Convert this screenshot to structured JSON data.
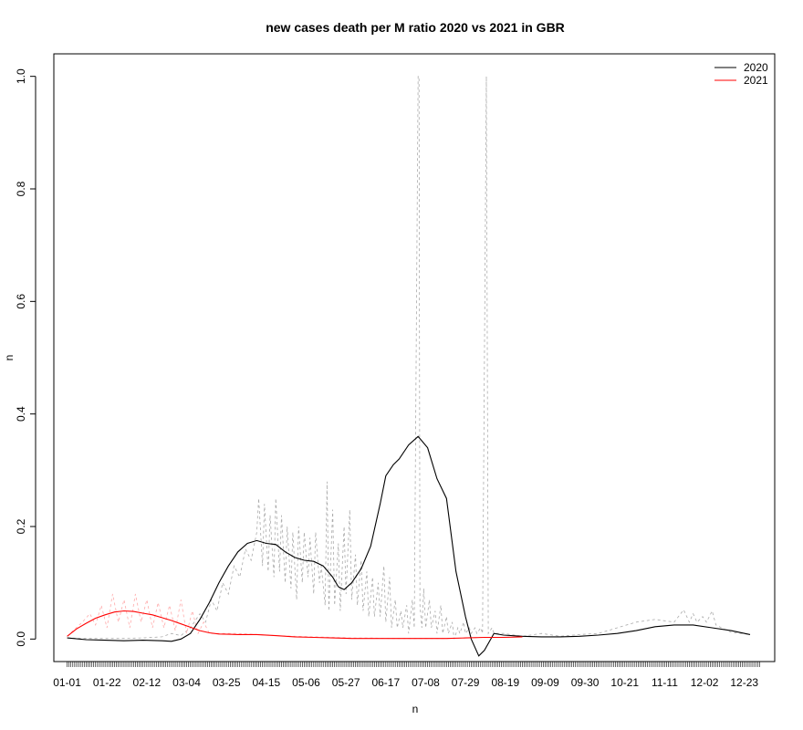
{
  "chart_data": {
    "type": "line",
    "title": "new cases death per M ratio 2020 vs 2021 in GBR",
    "xlabel": "n",
    "ylabel": "n",
    "x_tick_labels": [
      "01-01",
      "01-22",
      "02-12",
      "03-04",
      "03-25",
      "04-15",
      "05-06",
      "05-27",
      "06-17",
      "07-08",
      "07-29",
      "08-19",
      "09-09",
      "09-30",
      "10-21",
      "11-11",
      "12-02",
      "12-23"
    ],
    "x_tick_days": [
      0,
      21,
      42,
      63,
      84,
      105,
      126,
      147,
      168,
      189,
      210,
      231,
      252,
      273,
      294,
      315,
      336,
      357
    ],
    "y_ticks": [
      0.0,
      0.2,
      0.4,
      0.6,
      0.8,
      1.0
    ],
    "y_tick_labels": [
      "0.0",
      "0.2",
      "0.4",
      "0.6",
      "0.8",
      "1.0"
    ],
    "xlim": [
      -7,
      373
    ],
    "ylim": [
      -0.04,
      1.04
    ],
    "legend_position": "top-right",
    "legend": [
      {
        "label": "2020",
        "color": "#000000"
      },
      {
        "label": "2021",
        "color": "#ff0000"
      }
    ],
    "series": [
      {
        "name": "2020",
        "color": "#000000",
        "x": [
          0,
          10,
          20,
          30,
          40,
          50,
          55,
          60,
          65,
          70,
          75,
          80,
          85,
          90,
          95,
          100,
          105,
          110,
          115,
          120,
          125,
          130,
          135,
          140,
          143,
          146,
          150,
          155,
          160,
          165,
          168,
          172,
          175,
          180,
          185,
          190,
          195,
          200,
          205,
          210,
          213,
          217,
          220,
          225,
          230,
          240,
          250,
          260,
          270,
          280,
          290,
          300,
          310,
          320,
          330,
          340,
          350,
          360
        ],
        "values": [
          0.002,
          -0.001,
          -0.002,
          -0.003,
          -0.002,
          -0.003,
          -0.004,
          0.0,
          0.01,
          0.035,
          0.065,
          0.1,
          0.13,
          0.155,
          0.17,
          0.175,
          0.17,
          0.168,
          0.155,
          0.145,
          0.14,
          0.138,
          0.13,
          0.11,
          0.093,
          0.088,
          0.1,
          0.125,
          0.165,
          0.24,
          0.29,
          0.31,
          0.32,
          0.345,
          0.36,
          0.34,
          0.285,
          0.25,
          0.12,
          0.04,
          0.0,
          -0.03,
          -0.02,
          0.01,
          0.007,
          0.005,
          0.004,
          0.004,
          0.005,
          0.007,
          0.01,
          0.015,
          0.022,
          0.025,
          0.025,
          0.02,
          0.015,
          0.008
        ]
      },
      {
        "name": "2021",
        "color": "#ff0000",
        "x": [
          0,
          5,
          10,
          15,
          20,
          25,
          30,
          35,
          40,
          45,
          50,
          55,
          60,
          65,
          70,
          75,
          80,
          90,
          100,
          110,
          120,
          130,
          140,
          150,
          160,
          170,
          180,
          190,
          200,
          210,
          220,
          230,
          240
        ],
        "values": [
          0.005,
          0.018,
          0.028,
          0.037,
          0.043,
          0.048,
          0.05,
          0.049,
          0.046,
          0.043,
          0.038,
          0.033,
          0.027,
          0.021,
          0.015,
          0.011,
          0.009,
          0.008,
          0.008,
          0.006,
          0.004,
          0.003,
          0.002,
          0.001,
          0.001,
          0.001,
          0.001,
          0.001,
          0.001,
          0.002,
          0.003,
          0.003,
          0.004
        ]
      },
      {
        "name": "2020 daily",
        "style": "dashed",
        "color": "#aaaaaa",
        "x": [
          0,
          10,
          20,
          30,
          40,
          50,
          55,
          60,
          65,
          70,
          73,
          76,
          79,
          82,
          85,
          88,
          91,
          94,
          97,
          100,
          101,
          103,
          104,
          106,
          107,
          109,
          110,
          112,
          113,
          115,
          116,
          118,
          119,
          121,
          122,
          124,
          125,
          127,
          128,
          130,
          131,
          133,
          134,
          136,
          137,
          138,
          140,
          141,
          143,
          144,
          146,
          147,
          149,
          150,
          152,
          153,
          155,
          156,
          158,
          159,
          161,
          162,
          164,
          165,
          167,
          168,
          170,
          171,
          173,
          174,
          176,
          177,
          179,
          180,
          182,
          183,
          185,
          185.5,
          186,
          187,
          188,
          189,
          191,
          192,
          194,
          195,
          197,
          198,
          200,
          201,
          203,
          204,
          206,
          207,
          209,
          210,
          212,
          213,
          215,
          216,
          218,
          219,
          221,
          222,
          224,
          225,
          230,
          240,
          250,
          260,
          270,
          280,
          290,
          300,
          310,
          320,
          325,
          328,
          330,
          332,
          335,
          337,
          340,
          342,
          345,
          350,
          355,
          360
        ],
        "values": [
          0.002,
          0.001,
          0.001,
          0.001,
          0.002,
          0.004,
          0.01,
          0.006,
          0.02,
          0.045,
          0.03,
          0.07,
          0.05,
          0.1,
          0.08,
          0.13,
          0.11,
          0.16,
          0.14,
          0.19,
          0.25,
          0.13,
          0.24,
          0.12,
          0.22,
          0.11,
          0.25,
          0.12,
          0.22,
          0.1,
          0.2,
          0.09,
          0.19,
          0.07,
          0.2,
          0.1,
          0.19,
          0.11,
          0.18,
          0.08,
          0.19,
          0.1,
          0.13,
          0.06,
          0.28,
          0.05,
          0.23,
          0.06,
          0.17,
          0.05,
          0.2,
          0.08,
          0.23,
          0.07,
          0.15,
          0.06,
          0.14,
          0.05,
          0.12,
          0.04,
          0.11,
          0.04,
          0.1,
          0.04,
          0.13,
          0.03,
          0.11,
          0.02,
          0.07,
          0.02,
          0.05,
          0.02,
          0.06,
          0.01,
          0.07,
          0.02,
          1.0,
          1.0,
          0.06,
          0.02,
          0.09,
          0.02,
          0.07,
          0.02,
          0.05,
          0.01,
          0.06,
          0.01,
          0.04,
          0.01,
          0.03,
          0.0,
          0.02,
          0.01,
          0.03,
          0.01,
          0.02,
          0.01,
          0.02,
          0.01,
          0.02,
          0.01,
          1.0,
          0.01,
          0.02,
          0.01,
          0.01,
          0.005,
          0.01,
          0.005,
          0.008,
          0.01,
          0.02,
          0.03,
          0.035,
          0.03,
          0.052,
          0.03,
          0.045,
          0.03,
          0.04,
          0.03,
          0.05,
          0.025,
          0.02,
          0.012,
          0.01,
          0.008
        ]
      },
      {
        "name": "2021 daily",
        "style": "dashed",
        "color": "#ffaaaa",
        "x": [
          0,
          8,
          12,
          15,
          18,
          21,
          24,
          27,
          30,
          33,
          36,
          39,
          42,
          45,
          48,
          51,
          54,
          57,
          60,
          63,
          66,
          69,
          72,
          75,
          80,
          90,
          100,
          110,
          120,
          130,
          140,
          150,
          160,
          170,
          180,
          190,
          200,
          210,
          220,
          230,
          240
        ],
        "values": [
          0.005,
          0.03,
          0.045,
          0.025,
          0.06,
          0.02,
          0.08,
          0.03,
          0.07,
          0.02,
          0.08,
          0.03,
          0.07,
          0.02,
          0.065,
          0.02,
          0.06,
          0.015,
          0.07,
          0.01,
          0.05,
          0.01,
          0.03,
          0.01,
          0.01,
          0.01,
          0.008,
          0.006,
          0.005,
          0.004,
          0.003,
          0.002,
          0.002,
          0.001,
          0.001,
          0.001,
          0.001,
          0.002,
          0.003,
          0.003,
          0.004
        ]
      }
    ]
  }
}
